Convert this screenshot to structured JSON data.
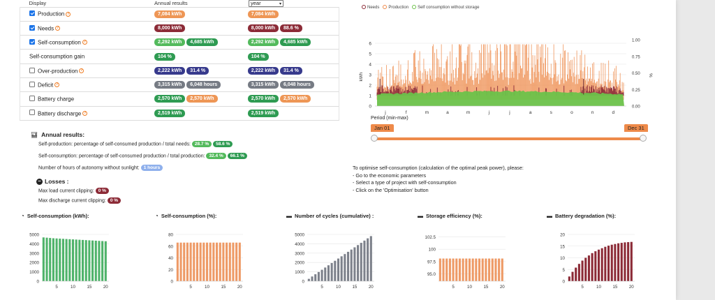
{
  "table": {
    "headers": {
      "display": "Display",
      "annual": "Annual results",
      "period_select": "year"
    },
    "rows": [
      {
        "label": "Production",
        "checked": true,
        "help": true,
        "annual": [
          {
            "v": "7,084 kWh",
            "c": "orange"
          }
        ],
        "period": [
          {
            "v": "7,084 kWh",
            "c": "orange"
          }
        ]
      },
      {
        "label": "Needs",
        "checked": true,
        "help": true,
        "annual": [
          {
            "v": "8,000 kWh",
            "c": "maroon"
          }
        ],
        "period": [
          {
            "v": "8,000 kWh",
            "c": "maroon"
          },
          {
            "v": "88.6 %",
            "c": "maroon"
          }
        ]
      },
      {
        "label": "Self-consumption",
        "checked": true,
        "help": true,
        "annual": [
          {
            "v": "2,292 kWh",
            "c": "green"
          },
          {
            "v": "4,685 kWh",
            "c": "dgreen"
          }
        ],
        "period": [
          {
            "v": "2,292 kWh",
            "c": "green"
          },
          {
            "v": "4,685 kWh",
            "c": "dgreen"
          }
        ]
      },
      {
        "label": "Self-consumption gain",
        "checked": null,
        "help": false,
        "annual": [
          {
            "v": "104 %",
            "c": "dgreen"
          }
        ],
        "period": [
          {
            "v": "104 %",
            "c": "dgreen"
          }
        ]
      },
      {
        "label": "Over-production",
        "checked": false,
        "help": true,
        "annual": [
          {
            "v": "2,222 kWh",
            "c": "navy"
          },
          {
            "v": "31.4 %",
            "c": "navy"
          }
        ],
        "period": [
          {
            "v": "2,222 kWh",
            "c": "navy"
          },
          {
            "v": "31.4 %",
            "c": "navy"
          }
        ]
      },
      {
        "label": "Deficit",
        "checked": false,
        "help": true,
        "annual": [
          {
            "v": "3,315 kWh",
            "c": "gray"
          },
          {
            "v": "6,048 hours",
            "c": "gray"
          }
        ],
        "period": [
          {
            "v": "3,315 kWh",
            "c": "gray"
          },
          {
            "v": "6,048 hours",
            "c": "gray"
          }
        ]
      },
      {
        "label": "Battery charge",
        "checked": false,
        "help": false,
        "annual": [
          {
            "v": "2,570 kWh",
            "c": "dgreen"
          },
          {
            "v": "2,570 kWh",
            "c": "orange"
          }
        ],
        "period": [
          {
            "v": "2,570 kWh",
            "c": "dgreen"
          },
          {
            "v": "2,570 kWh",
            "c": "orange"
          }
        ]
      },
      {
        "label": "Battery discharge",
        "checked": false,
        "help": true,
        "annual": [
          {
            "v": "2,519 kWh",
            "c": "dgreen"
          }
        ],
        "period": [
          {
            "v": "2,519 kWh",
            "c": "dgreen"
          }
        ]
      }
    ]
  },
  "annual_results": {
    "title": "Annual results:",
    "self_production": {
      "text": "Self-production: percentage of self-consumed production / total needs:",
      "b1": "28.7 %",
      "b2": "58.6 %"
    },
    "self_consumption": {
      "text": "Self-consumption: percentage of self-consumed production / total production:",
      "b1": "32.4 %",
      "b2": "66.1 %"
    },
    "autonomy": {
      "text": "Number of hours of autonomy without sunlight:",
      "b1": "1 hours"
    },
    "losses_title": "Losses",
    "load_clipping": {
      "text": "Max load current clipping:",
      "b1": "0 %"
    },
    "discharge_clipping": {
      "text": "Max discharge current clipping:",
      "b1": "0 %"
    }
  },
  "main_chart": {
    "legend": [
      "Needs",
      "Production",
      "Self consumption without storage"
    ],
    "colors": {
      "needs": "#8c2b37",
      "production": "#ee8a4a",
      "self": "#6cc24a"
    },
    "y_left": {
      "label": "kWh",
      "ticks": [
        "6",
        "5",
        "4",
        "3",
        "2",
        "1",
        "0"
      ]
    },
    "y_right": {
      "label": "%",
      "ticks": [
        "1.00",
        "0.75",
        "0.50",
        "0.25",
        "0.00"
      ]
    },
    "months": [
      "j",
      "f",
      "m",
      "a",
      "m",
      "j",
      "j",
      "a",
      "s",
      "o",
      "n",
      "d"
    ],
    "period_label": "Period (min-max)",
    "from": "Jan 01",
    "to": "Dec 31"
  },
  "optimise": {
    "lines": [
      "To optimise self-consumption (calculation of the optimal peak power), please:",
      "- Go to the economic parameters",
      "- Select a type of project with self-consumption",
      "- Click on the 'Optimisation' button"
    ]
  },
  "chart_data": [
    {
      "type": "bar",
      "title": "Self-consumption (kWh):",
      "icon": "gauge-icon",
      "color": "#4fb36a",
      "x": [
        1,
        2,
        3,
        4,
        5,
        6,
        7,
        8,
        9,
        10,
        11,
        12,
        13,
        14,
        15,
        16,
        17,
        18,
        19,
        20
      ],
      "values": [
        4680,
        4650,
        4620,
        4590,
        4570,
        4550,
        4530,
        4510,
        4490,
        4470,
        4450,
        4430,
        4410,
        4390,
        4370,
        4350,
        4330,
        4310,
        4290,
        4270
      ],
      "ylim": [
        0,
        5000
      ],
      "yticks": [
        "5000",
        "4000",
        "3000",
        "2000",
        "1000",
        "0"
      ],
      "xticks": [
        "5",
        "10",
        "15",
        "20"
      ]
    },
    {
      "type": "bar",
      "title": "Self-consumption (%):",
      "icon": "gauge-icon",
      "color": "#ee9a66",
      "x": [
        1,
        2,
        3,
        4,
        5,
        6,
        7,
        8,
        9,
        10,
        11,
        12,
        13,
        14,
        15,
        16,
        17,
        18,
        19,
        20
      ],
      "values": [
        66,
        66,
        66,
        66,
        66,
        66,
        66,
        66,
        66,
        66,
        66,
        66,
        66,
        66,
        66,
        66,
        66,
        66,
        66,
        66
      ],
      "ylim": [
        0,
        80
      ],
      "yticks": [
        "80",
        "60",
        "40",
        "20",
        "0"
      ],
      "xticks": [
        "5",
        "10",
        "15",
        "20"
      ]
    },
    {
      "type": "bar",
      "title": "Number of cycles (cumulative) :",
      "icon": "battery-icon",
      "color": "#7d818b",
      "x": [
        1,
        2,
        3,
        4,
        5,
        6,
        7,
        8,
        9,
        10,
        11,
        12,
        13,
        14,
        15,
        16,
        17,
        18,
        19,
        20
      ],
      "values": [
        250,
        500,
        740,
        980,
        1220,
        1460,
        1700,
        1940,
        2180,
        2420,
        2660,
        2900,
        3140,
        3380,
        3620,
        3860,
        4100,
        4340,
        4580,
        4820
      ],
      "ylim": [
        0,
        5000
      ],
      "yticks": [
        "5000",
        "4000",
        "3000",
        "2000",
        "1000",
        "0"
      ],
      "xticks": [
        "5",
        "10",
        "15",
        "20"
      ]
    },
    {
      "type": "bar",
      "title": "Storage efficiency (%):",
      "icon": "battery-icon",
      "color": "#ee9a66",
      "x": [
        1,
        2,
        3,
        4,
        5,
        6,
        7,
        8,
        9,
        10,
        11,
        12,
        13,
        14,
        15,
        16,
        17,
        18,
        19,
        20
      ],
      "values": [
        98.1,
        98.1,
        98.1,
        98.1,
        98.1,
        98.1,
        98.1,
        98.1,
        98.1,
        98.1,
        98.1,
        98.1,
        98.1,
        98.1,
        98.1,
        98.1,
        98.1,
        98.1,
        98.1,
        98.1
      ],
      "ylim": [
        93.5,
        103
      ],
      "yticks": [
        "102.5",
        "100",
        "97.5",
        "95.0"
      ],
      "ytickvals": [
        102.5,
        100,
        97.5,
        95
      ],
      "xticks": [
        "5",
        "10",
        "15",
        "20"
      ]
    },
    {
      "type": "bar",
      "title": "Battery degradation (%):",
      "icon": "battery-icon",
      "color": "#8c2b37",
      "x": [
        1,
        2,
        3,
        4,
        5,
        6,
        7,
        8,
        9,
        10,
        11,
        12,
        13,
        14,
        15,
        16,
        17,
        18,
        19,
        20
      ],
      "values": [
        2,
        4,
        5.8,
        7.4,
        8.8,
        10,
        11,
        12,
        12.8,
        13.5,
        14.1,
        14.7,
        15.2,
        15.6,
        15.9,
        16.2,
        16.4,
        16.6,
        16.7,
        16.8
      ],
      "ylim": [
        0,
        20
      ],
      "yticks": [
        "20",
        "15",
        "10",
        "5",
        "0"
      ],
      "xticks": [
        "5",
        "10",
        "15",
        "20"
      ]
    }
  ]
}
